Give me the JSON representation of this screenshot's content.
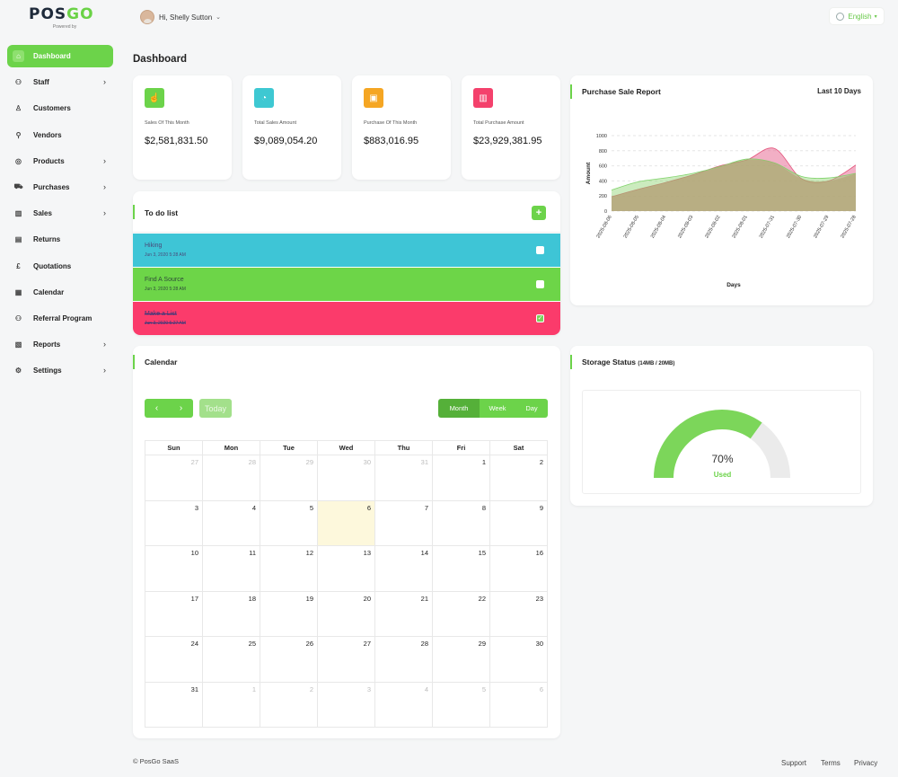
{
  "brand": {
    "name_a": "POS",
    "name_b": "GO",
    "tagline": "Powered by"
  },
  "user": {
    "greeting": "Hi, Shelly Sutton"
  },
  "language": {
    "label": "English"
  },
  "sidebar": {
    "items": [
      {
        "label": "Dashboard",
        "icon": "home-icon",
        "active": true
      },
      {
        "label": "Staff",
        "icon": "users-icon",
        "arrow": true
      },
      {
        "label": "Customers",
        "icon": "user-icon"
      },
      {
        "label": "Vendors",
        "icon": "user-plus-icon"
      },
      {
        "label": "Products",
        "icon": "product-icon",
        "arrow": true
      },
      {
        "label": "Purchases",
        "icon": "cart-icon",
        "arrow": true
      },
      {
        "label": "Sales",
        "icon": "book-icon",
        "arrow": true
      },
      {
        "label": "Returns",
        "icon": "return-icon"
      },
      {
        "label": "Quotations",
        "icon": "pound-icon"
      },
      {
        "label": "Calendar",
        "icon": "calendar-icon"
      },
      {
        "label": "Referral Program",
        "icon": "referral-icon"
      },
      {
        "label": "Reports",
        "icon": "report-icon",
        "arrow": true
      },
      {
        "label": "Settings",
        "icon": "gear-icon",
        "arrow": true
      }
    ]
  },
  "page": {
    "title": "Dashboard"
  },
  "stats": [
    {
      "label": "Sales Of This Month",
      "value": "$2,581,831.50",
      "color": "#6cd34a",
      "icon": "hand-icon"
    },
    {
      "label": "Total Sales Amount",
      "value": "$9,089,054.20",
      "color": "#3ec8d2",
      "icon": "pie-icon"
    },
    {
      "label": "Purchase Of This Month",
      "value": "$883,016.95",
      "color": "#f5a623",
      "icon": "box-icon"
    },
    {
      "label": "Total Purchase Amount",
      "value": "$23,929,381.95",
      "color": "#f4416c",
      "icon": "bar-chart-icon"
    }
  ],
  "report": {
    "title": "Purchase Sale Report",
    "range": "Last 10 Days"
  },
  "chart_data": {
    "type": "area",
    "title": "",
    "xlabel": "Days",
    "ylabel": "Amount",
    "ylim": [
      0,
      1000
    ],
    "yticks": [
      0,
      200,
      400,
      600,
      800,
      1000
    ],
    "categories": [
      "2025-08-06",
      "2025-08-05",
      "2025-08-04",
      "2025-08-03",
      "2025-08-02",
      "2025-08-01",
      "2025-07-31",
      "2025-07-30",
      "2025-07-29",
      "2025-07-28"
    ],
    "series": [
      {
        "values": [
          280,
          390,
          440,
          500,
          590,
          690,
          640,
          460,
          440,
          500
        ],
        "color": "#7fd36a"
      },
      {
        "values": [
          190,
          290,
          380,
          480,
          600,
          680,
          830,
          430,
          400,
          610
        ],
        "color": "#e3527a"
      }
    ],
    "grid": true
  },
  "todo": {
    "title": "To do list",
    "items": [
      {
        "title": "Hiking",
        "date": "Jun 3, 2020 5:28 AM",
        "color": "#3ec5d6",
        "text": "#4a4a7a",
        "done": false
      },
      {
        "title": "Find A Source",
        "date": "Jun 3, 2020 5:28 AM",
        "color": "#6dd548",
        "text": "#2e4a3a",
        "done": false
      },
      {
        "title": "Make a List",
        "date": "Jun 3, 2020 5:27 AM",
        "color": "#fb3b6b",
        "text": "#3a3a7a",
        "done": true
      }
    ]
  },
  "calendar": {
    "title": "Calendar",
    "today_label": "Today",
    "views": [
      "Month",
      "Week",
      "Day"
    ],
    "active_view": "Month",
    "weekdays": [
      "Sun",
      "Mon",
      "Tue",
      "Wed",
      "Thu",
      "Fri",
      "Sat"
    ],
    "weeks": [
      [
        {
          "d": "27",
          "o": true
        },
        {
          "d": "28",
          "o": true
        },
        {
          "d": "29",
          "o": true
        },
        {
          "d": "30",
          "o": true
        },
        {
          "d": "31",
          "o": true
        },
        {
          "d": "1"
        },
        {
          "d": "2"
        }
      ],
      [
        {
          "d": "3"
        },
        {
          "d": "4"
        },
        {
          "d": "5"
        },
        {
          "d": "6",
          "t": true
        },
        {
          "d": "7"
        },
        {
          "d": "8"
        },
        {
          "d": "9"
        }
      ],
      [
        {
          "d": "10"
        },
        {
          "d": "11"
        },
        {
          "d": "12"
        },
        {
          "d": "13"
        },
        {
          "d": "14"
        },
        {
          "d": "15"
        },
        {
          "d": "16"
        }
      ],
      [
        {
          "d": "17"
        },
        {
          "d": "18"
        },
        {
          "d": "19"
        },
        {
          "d": "20"
        },
        {
          "d": "21"
        },
        {
          "d": "22"
        },
        {
          "d": "23"
        }
      ],
      [
        {
          "d": "24"
        },
        {
          "d": "25"
        },
        {
          "d": "26"
        },
        {
          "d": "27"
        },
        {
          "d": "28"
        },
        {
          "d": "29"
        },
        {
          "d": "30"
        }
      ],
      [
        {
          "d": "31"
        },
        {
          "d": "1",
          "o": true
        },
        {
          "d": "2",
          "o": true
        },
        {
          "d": "3",
          "o": true
        },
        {
          "d": "4",
          "o": true
        },
        {
          "d": "5",
          "o": true
        },
        {
          "d": "6",
          "o": true
        }
      ]
    ]
  },
  "storage": {
    "title": "Storage Status",
    "detail": "(14MB / 20MB)",
    "percent_label": "70%",
    "percent": 0.7,
    "used_label": "Used"
  },
  "footer": {
    "copyright": "© PosGo SaaS",
    "links": [
      "Support",
      "Terms",
      "Privacy"
    ]
  }
}
